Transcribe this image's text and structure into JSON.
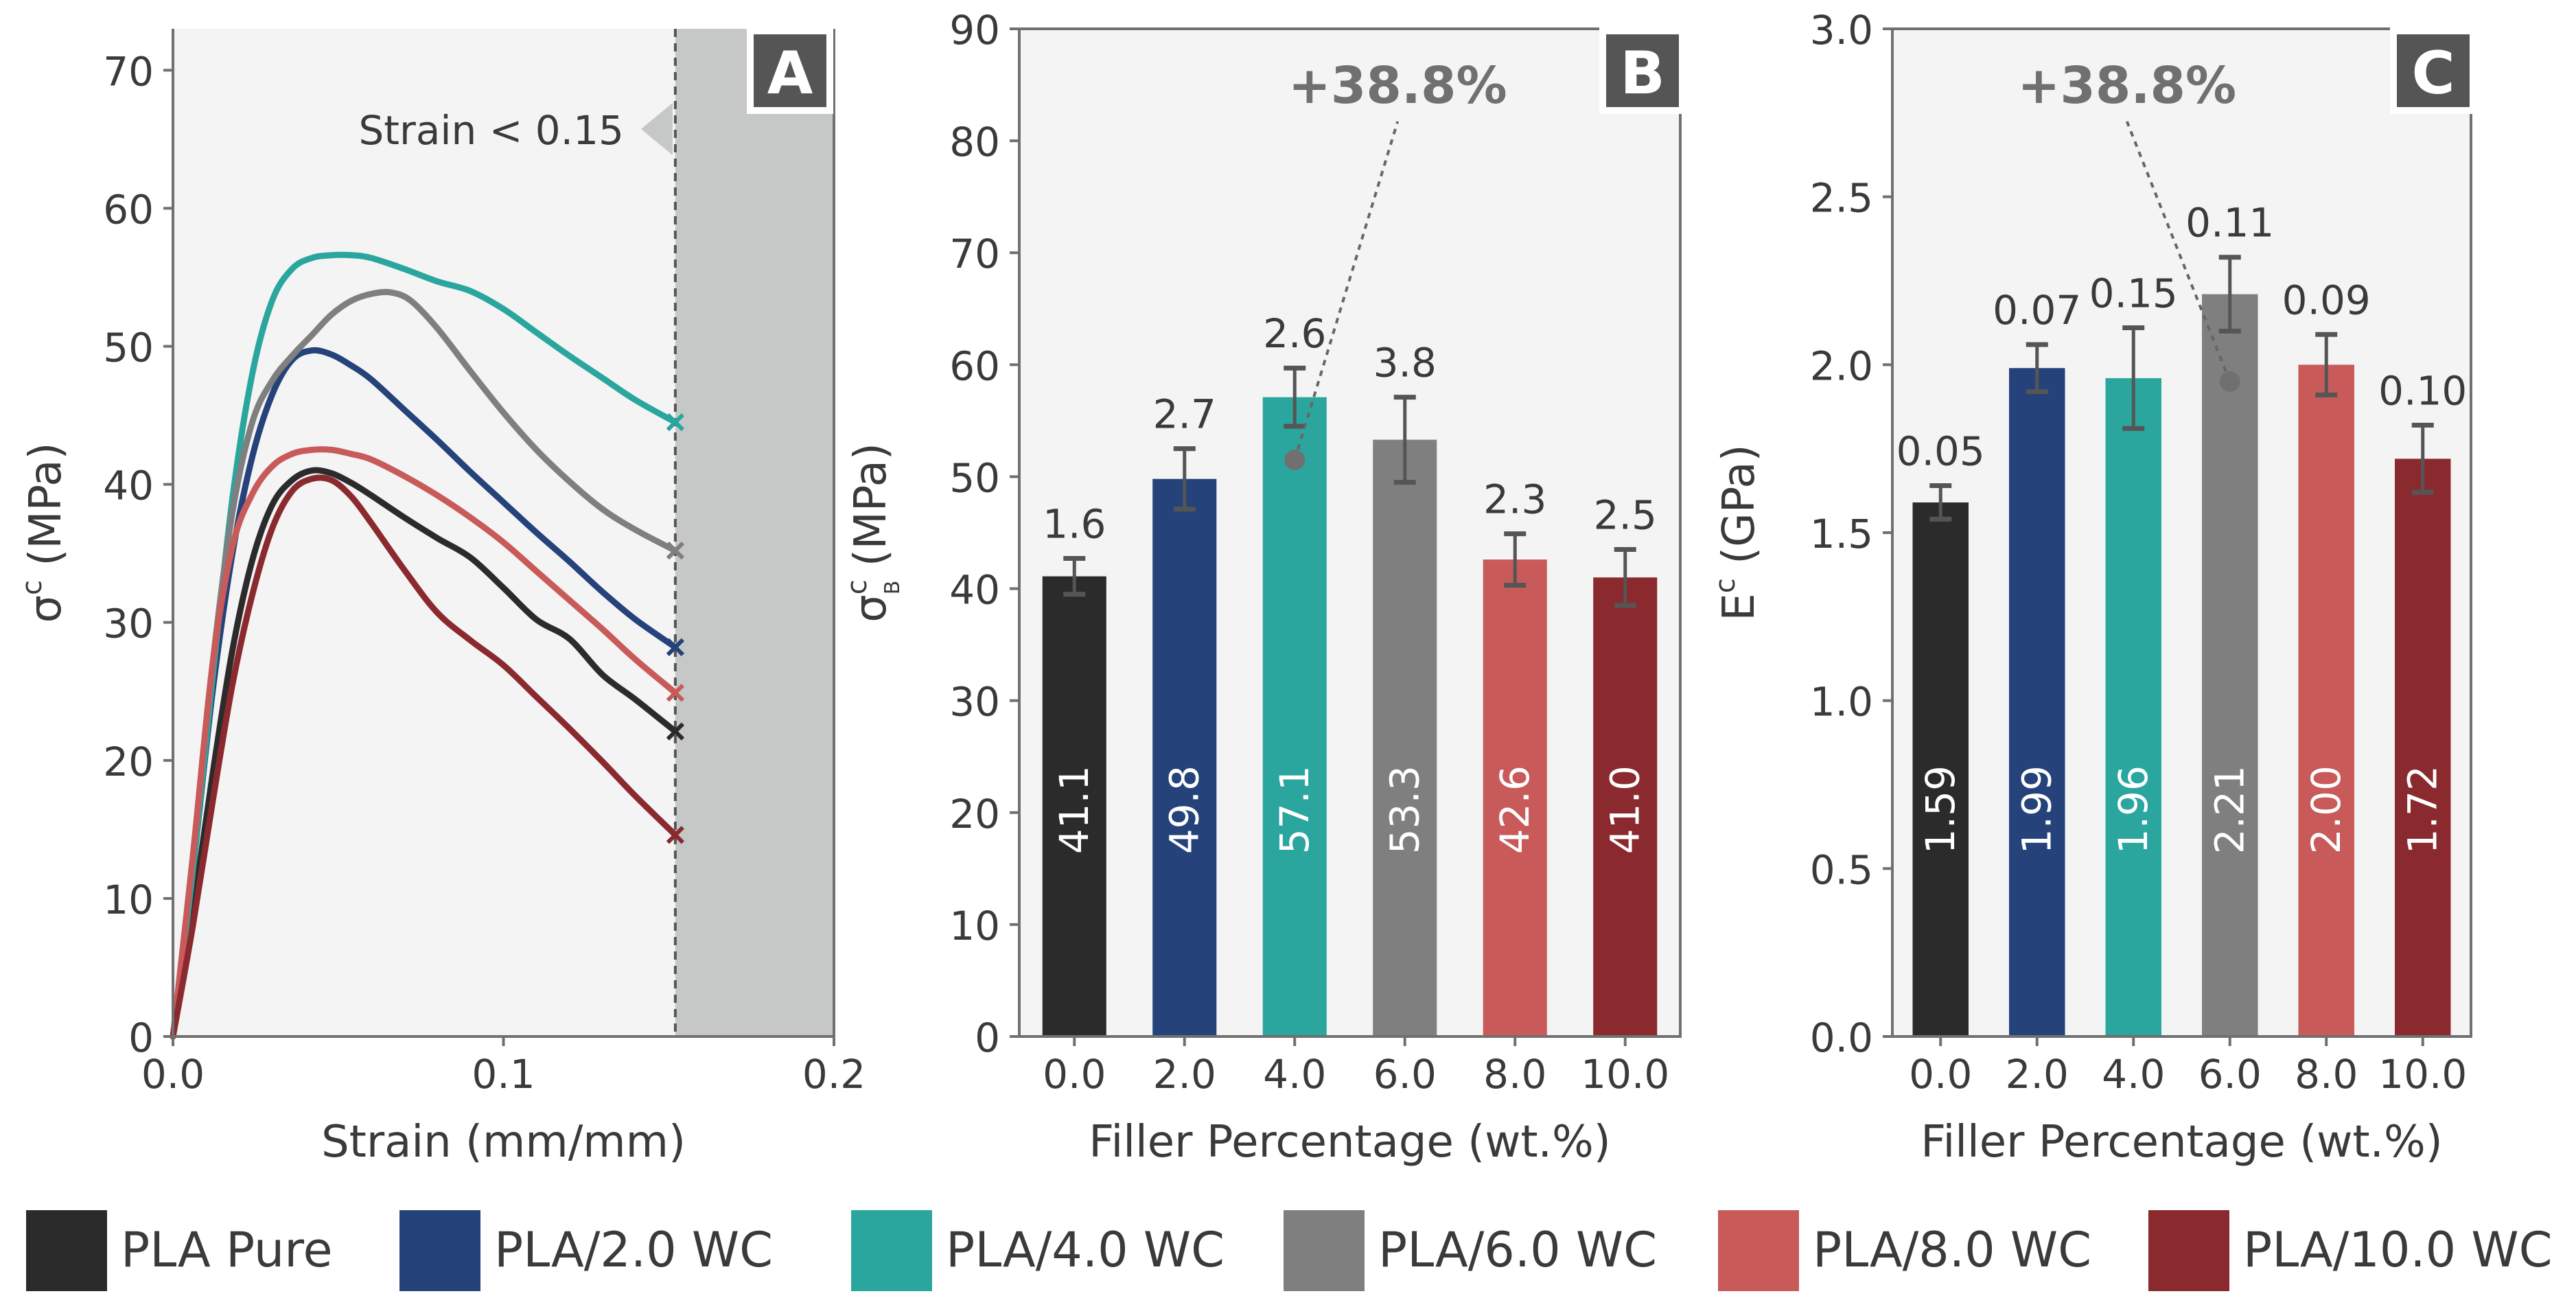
{
  "colors": {
    "PLA Pure": "#2b2b2b",
    "PLA/2.0 WC": "#25427a",
    "PLA/4.0 WC": "#2aa69e",
    "PLA/6.0 WC": "#7f7f7f",
    "PLA/8.0 WC": "#c95a5a",
    "PLA/10.0 WC": "#8b2a2e",
    "panel_bg": "#f4f4f4",
    "shade": "#c6c8c8",
    "annotation": "#707070"
  },
  "legend": [
    "PLA Pure",
    "PLA/2.0 WC",
    "PLA/4.0 WC",
    "PLA/6.0 WC",
    "PLA/8.0 WC",
    "PLA/10.0 WC"
  ],
  "chart_data": [
    {
      "type": "line",
      "panel": "A",
      "xlabel": "Strain (mm/mm)",
      "ylabel_base": "σ",
      "ylabel_sup": "c",
      "ylabel_unit": "(MPa)",
      "xlim": [
        0,
        0.2
      ],
      "ylim": [
        0,
        73
      ],
      "xticks": [
        0.0,
        0.1,
        0.2
      ],
      "xtick_labels": [
        "0.0",
        "0.1",
        "0.2"
      ],
      "yticks": [
        0,
        10,
        20,
        30,
        40,
        50,
        60,
        70
      ],
      "ytick_labels": [
        "0",
        "10",
        "20",
        "30",
        "40",
        "50",
        "60",
        "70"
      ],
      "cutoff_x": 0.152,
      "cutoff_label": "Strain < 0.15",
      "series": [
        {
          "name": "PLA Pure",
          "x": [
            0,
            0.006,
            0.012,
            0.018,
            0.024,
            0.03,
            0.036,
            0.042,
            0.048,
            0.054,
            0.06,
            0.07,
            0.08,
            0.09,
            0.1,
            0.11,
            0.12,
            0.13,
            0.14,
            0.152
          ],
          "y": [
            0,
            9,
            19,
            28,
            34.5,
            38.5,
            40.3,
            41,
            40.8,
            40.1,
            39.2,
            37.6,
            36.1,
            34.7,
            32.5,
            30.2,
            28.8,
            26.2,
            24.4,
            22.1
          ]
        },
        {
          "name": "PLA/2.0 WC",
          "x": [
            0,
            0.006,
            0.012,
            0.018,
            0.024,
            0.03,
            0.036,
            0.042,
            0.048,
            0.054,
            0.06,
            0.07,
            0.08,
            0.09,
            0.1,
            0.11,
            0.12,
            0.13,
            0.14,
            0.152
          ],
          "y": [
            0,
            12,
            25,
            35,
            42,
            46.5,
            49,
            49.7,
            49.4,
            48.6,
            47.6,
            45.4,
            43.2,
            40.9,
            38.7,
            36.5,
            34.4,
            32.2,
            30.2,
            28.2
          ]
        },
        {
          "name": "PLA/4.0 WC",
          "x": [
            0,
            0.006,
            0.012,
            0.018,
            0.024,
            0.03,
            0.036,
            0.042,
            0.048,
            0.054,
            0.06,
            0.07,
            0.08,
            0.09,
            0.1,
            0.11,
            0.12,
            0.13,
            0.14,
            0.152
          ],
          "y": [
            0,
            12,
            26,
            39,
            48,
            53.3,
            55.6,
            56.4,
            56.6,
            56.6,
            56.4,
            55.6,
            54.7,
            54,
            52.7,
            51,
            49.3,
            47.7,
            46.1,
            44.5
          ]
        },
        {
          "name": "PLA/6.0 WC",
          "x": [
            0,
            0.006,
            0.012,
            0.018,
            0.024,
            0.03,
            0.036,
            0.042,
            0.048,
            0.054,
            0.06,
            0.066,
            0.072,
            0.08,
            0.09,
            0.1,
            0.11,
            0.12,
            0.13,
            0.14,
            0.152
          ],
          "y": [
            0,
            13,
            27,
            38,
            44.5,
            47.5,
            49.3,
            50.8,
            52.3,
            53.3,
            53.8,
            53.9,
            53.3,
            51.3,
            48.2,
            45.2,
            42.5,
            40.2,
            38.2,
            36.7,
            35.2
          ]
        },
        {
          "name": "PLA/8.0 WC",
          "x": [
            0,
            0.006,
            0.012,
            0.018,
            0.024,
            0.03,
            0.036,
            0.042,
            0.048,
            0.054,
            0.06,
            0.07,
            0.08,
            0.09,
            0.1,
            0.11,
            0.12,
            0.13,
            0.14,
            0.152
          ],
          "y": [
            0,
            13,
            27,
            35.5,
            39.3,
            41.3,
            42.2,
            42.5,
            42.5,
            42.2,
            41.8,
            40.6,
            39.2,
            37.6,
            35.8,
            33.7,
            31.6,
            29.5,
            27.3,
            24.9
          ]
        },
        {
          "name": "PLA/10.0 WC",
          "x": [
            0,
            0.006,
            0.012,
            0.018,
            0.024,
            0.03,
            0.036,
            0.042,
            0.048,
            0.054,
            0.06,
            0.07,
            0.08,
            0.09,
            0.1,
            0.11,
            0.12,
            0.13,
            0.14,
            0.152
          ],
          "y": [
            0,
            8,
            17,
            25.5,
            32,
            36.8,
            39.5,
            40.4,
            40.3,
            39.1,
            37.2,
            33.8,
            30.7,
            28.7,
            26.9,
            24.6,
            22.3,
            19.9,
            17.4,
            14.6
          ]
        }
      ]
    },
    {
      "type": "bar",
      "panel": "B",
      "xlabel": "Filler Percentage (wt.%)",
      "ylabel_base": "σ",
      "ylabel_sup": "c",
      "ylabel_sub": "B",
      "ylabel_unit": "(MPa)",
      "categories": [
        "0.0",
        "2.0",
        "4.0",
        "6.0",
        "8.0",
        "10.0"
      ],
      "values": [
        41.1,
        49.8,
        57.1,
        53.3,
        42.6,
        41.0
      ],
      "value_labels": [
        "41.1",
        "49.8",
        "57.1",
        "53.3",
        "42.6",
        "41.0"
      ],
      "errors": [
        1.6,
        2.7,
        2.6,
        3.8,
        2.3,
        2.5
      ],
      "error_labels": [
        "1.6",
        "2.7",
        "2.6",
        "3.8",
        "2.3",
        "2.5"
      ],
      "ylim": [
        0,
        90
      ],
      "yticks": [
        0,
        10,
        20,
        30,
        40,
        50,
        60,
        70,
        80,
        90
      ],
      "ytick_labels": [
        "0",
        "10",
        "20",
        "30",
        "40",
        "50",
        "60",
        "70",
        "80",
        "90"
      ],
      "annotation": {
        "text": "+38.8%",
        "category_index": 2,
        "marker_value": 51.5
      }
    },
    {
      "type": "bar",
      "panel": "C",
      "xlabel": "Filler Percentage (wt.%)",
      "ylabel_base": "E",
      "ylabel_sup": "c",
      "ylabel_unit": "(GPa)",
      "categories": [
        "0.0",
        "2.0",
        "4.0",
        "6.0",
        "8.0",
        "10.0"
      ],
      "values": [
        1.59,
        1.99,
        1.96,
        2.21,
        2.0,
        1.72
      ],
      "value_labels": [
        "1.59",
        "1.99",
        "1.96",
        "2.21",
        "2.00",
        "1.72"
      ],
      "errors": [
        0.05,
        0.07,
        0.15,
        0.11,
        0.09,
        0.1
      ],
      "error_labels": [
        "0.05",
        "0.07",
        "0.15",
        "0.11",
        "0.09",
        "0.10"
      ],
      "ylim": [
        0,
        3.0
      ],
      "yticks": [
        0.0,
        0.5,
        1.0,
        1.5,
        2.0,
        2.5,
        3.0
      ],
      "ytick_labels": [
        "0.0",
        "0.5",
        "1.0",
        "1.5",
        "2.0",
        "2.5",
        "3.0"
      ],
      "annotation": {
        "text": "+38.8%",
        "category_index": 3,
        "marker_value": 1.95
      }
    }
  ]
}
